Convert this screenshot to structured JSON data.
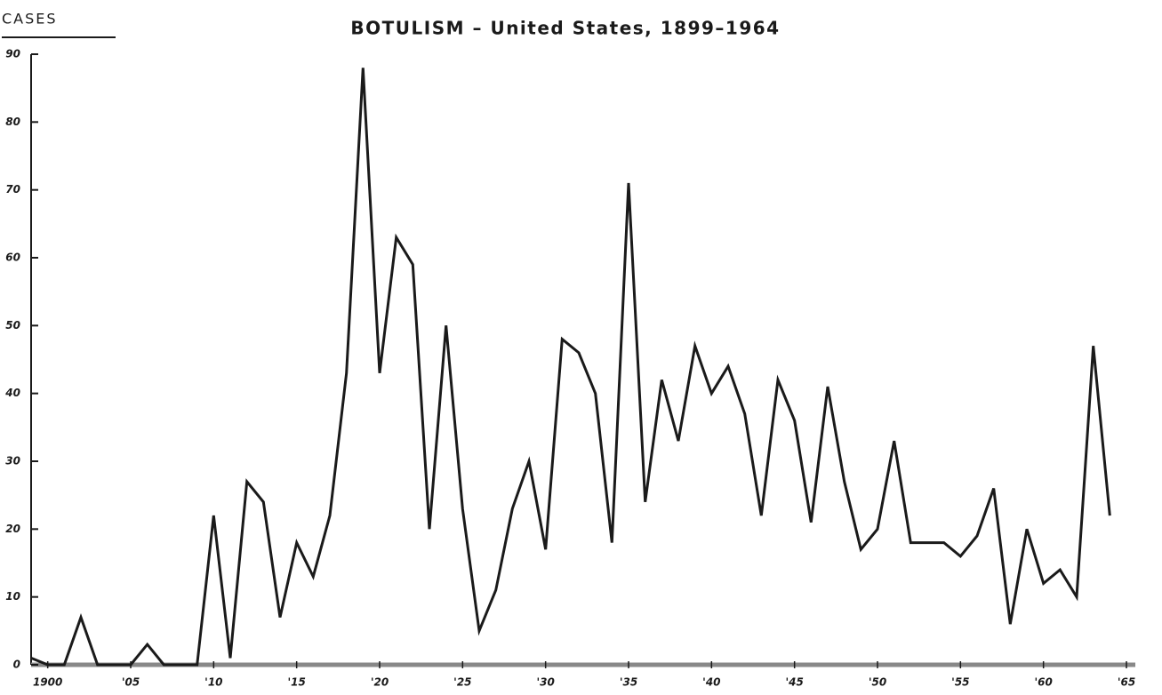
{
  "chart_data": {
    "type": "line",
    "title": "BOTULISM – United States, 1899–1964",
    "y_label": "CASES",
    "x": [
      1899,
      1900,
      1901,
      1902,
      1903,
      1904,
      1905,
      1906,
      1907,
      1908,
      1909,
      1910,
      1911,
      1912,
      1913,
      1914,
      1915,
      1916,
      1917,
      1918,
      1919,
      1920,
      1921,
      1922,
      1923,
      1924,
      1925,
      1926,
      1927,
      1928,
      1929,
      1930,
      1931,
      1932,
      1933,
      1934,
      1935,
      1936,
      1937,
      1938,
      1939,
      1940,
      1941,
      1942,
      1943,
      1944,
      1945,
      1946,
      1947,
      1948,
      1949,
      1950,
      1951,
      1952,
      1953,
      1954,
      1955,
      1956,
      1957,
      1958,
      1959,
      1960,
      1961,
      1962,
      1963,
      1964
    ],
    "values": [
      1,
      0,
      0,
      7,
      0,
      0,
      0,
      3,
      0,
      0,
      0,
      22,
      1,
      27,
      24,
      7,
      18,
      13,
      22,
      43,
      88,
      43,
      63,
      59,
      20,
      50,
      23,
      5,
      11,
      23,
      30,
      17,
      48,
      46,
      40,
      18,
      71,
      24,
      42,
      33,
      47,
      40,
      44,
      37,
      22,
      42,
      36,
      21,
      41,
      27,
      17,
      20,
      33,
      18,
      18,
      18,
      16,
      19,
      26,
      6,
      20,
      12,
      14,
      10,
      47,
      22
    ],
    "color": "#1a1a1a",
    "xlim": [
      1899,
      1965
    ],
    "xticks": [
      {
        "value": 1900,
        "label": "1900"
      },
      {
        "value": 1905,
        "label": "'05"
      },
      {
        "value": 1910,
        "label": "'10"
      },
      {
        "value": 1915,
        "label": "'15"
      },
      {
        "value": 1920,
        "label": "'20"
      },
      {
        "value": 1925,
        "label": "'25"
      },
      {
        "value": 1930,
        "label": "'30"
      },
      {
        "value": 1935,
        "label": "'35"
      },
      {
        "value": 1940,
        "label": "'40"
      },
      {
        "value": 1945,
        "label": "'45"
      },
      {
        "value": 1950,
        "label": "'50"
      },
      {
        "value": 1955,
        "label": "'55"
      },
      {
        "value": 1960,
        "label": "'60"
      },
      {
        "value": 1965,
        "label": "'65"
      }
    ],
    "ylim": [
      0,
      90
    ],
    "yticks": [
      0,
      10,
      20,
      30,
      40,
      50,
      60,
      70,
      80,
      90
    ],
    "grid": false
  }
}
